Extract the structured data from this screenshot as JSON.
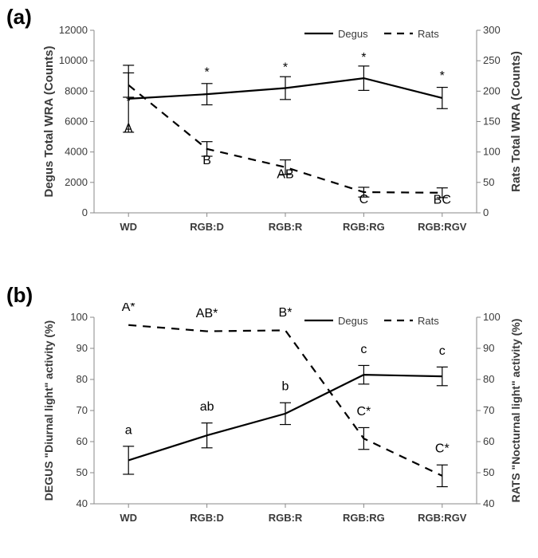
{
  "panel_labels": {
    "a": "(a)",
    "b": "(b)"
  },
  "chart_a": {
    "type": "line",
    "categories": [
      "WD",
      "RGB:D",
      "RGB:R",
      "RGB:RG",
      "RGB:RGV"
    ],
    "left_axis": {
      "label": "Degus Total WRA (Counts)",
      "min": 0,
      "max": 12000,
      "tick_step": 2000
    },
    "right_axis": {
      "label": "Rats Total WRA  (Counts)",
      "min": 0,
      "max": 300,
      "tick_step": 50
    },
    "legend": {
      "degus": "Degus",
      "rats": "Rats"
    },
    "degus": {
      "values": [
        7500,
        7800,
        8200,
        8850,
        7550
      ],
      "err": [
        2200,
        700,
        750,
        800,
        700
      ],
      "marks": [
        "A",
        "*",
        "*",
        "*",
        "*"
      ],
      "mark_offsets": [
        -2200,
        1200,
        1100,
        1100,
        1200
      ]
    },
    "rats": {
      "values": [
        210,
        105,
        75,
        34,
        33
      ],
      "err": [
        20,
        12,
        12,
        8,
        8
      ],
      "marks": [
        "*",
        "B",
        "AB",
        "C",
        "BC"
      ],
      "mark_offsets": [
        -33,
        -25,
        -18,
        -18,
        -18
      ]
    },
    "colors": {
      "axis": "#888888",
      "tick": "#888888",
      "text": "#3a3a3a",
      "mark": "#000000",
      "degus_line": "#000000",
      "rats_line": "#000000",
      "background": "#ffffff"
    },
    "fonts": {
      "axis_label": 15,
      "tick": 13,
      "category": 13,
      "mark": 16,
      "legend": 13
    },
    "line_width": 2.2,
    "err_cap": 7
  },
  "chart_b": {
    "type": "line",
    "categories": [
      "WD",
      "RGB:D",
      "RGB:R",
      "RGB:RG",
      "RGB:RGV"
    ],
    "left_axis": {
      "label": "DEGUS \"Diurnal light\" activity (%)",
      "min": 40,
      "max": 100,
      "tick_step": 10
    },
    "right_axis": {
      "label": "RATS \"Nocturnal light\" activity (%)",
      "min": 40,
      "max": 100,
      "tick_step": 10
    },
    "legend": {
      "degus": "Degus",
      "rats": "Rats"
    },
    "degus": {
      "values": [
        54,
        62,
        69,
        81.5,
        81
      ],
      "err": [
        4.5,
        4,
        3.5,
        3,
        3
      ],
      "marks": [
        "a",
        "ab",
        "b",
        "c",
        "c"
      ],
      "mark_offsets": [
        8.5,
        8,
        7.5,
        7,
        7
      ]
    },
    "rats": {
      "values": [
        97.5,
        95.5,
        95.8,
        61,
        49
      ],
      "err": [
        0,
        0,
        0,
        3.5,
        3.5
      ],
      "marks": [
        "A*",
        "AB*",
        "B*",
        "C*",
        "C*"
      ],
      "mark_offsets": [
        4.5,
        4.5,
        4.5,
        7.5,
        7.5
      ]
    },
    "colors": {
      "axis": "#888888",
      "tick": "#888888",
      "text": "#3a3a3a",
      "mark": "#000000",
      "degus_line": "#000000",
      "rats_line": "#000000",
      "background": "#ffffff"
    },
    "fonts": {
      "axis_label": 14,
      "tick": 13,
      "category": 13,
      "mark": 16,
      "legend": 13
    },
    "line_width": 2.2,
    "err_cap": 7
  }
}
